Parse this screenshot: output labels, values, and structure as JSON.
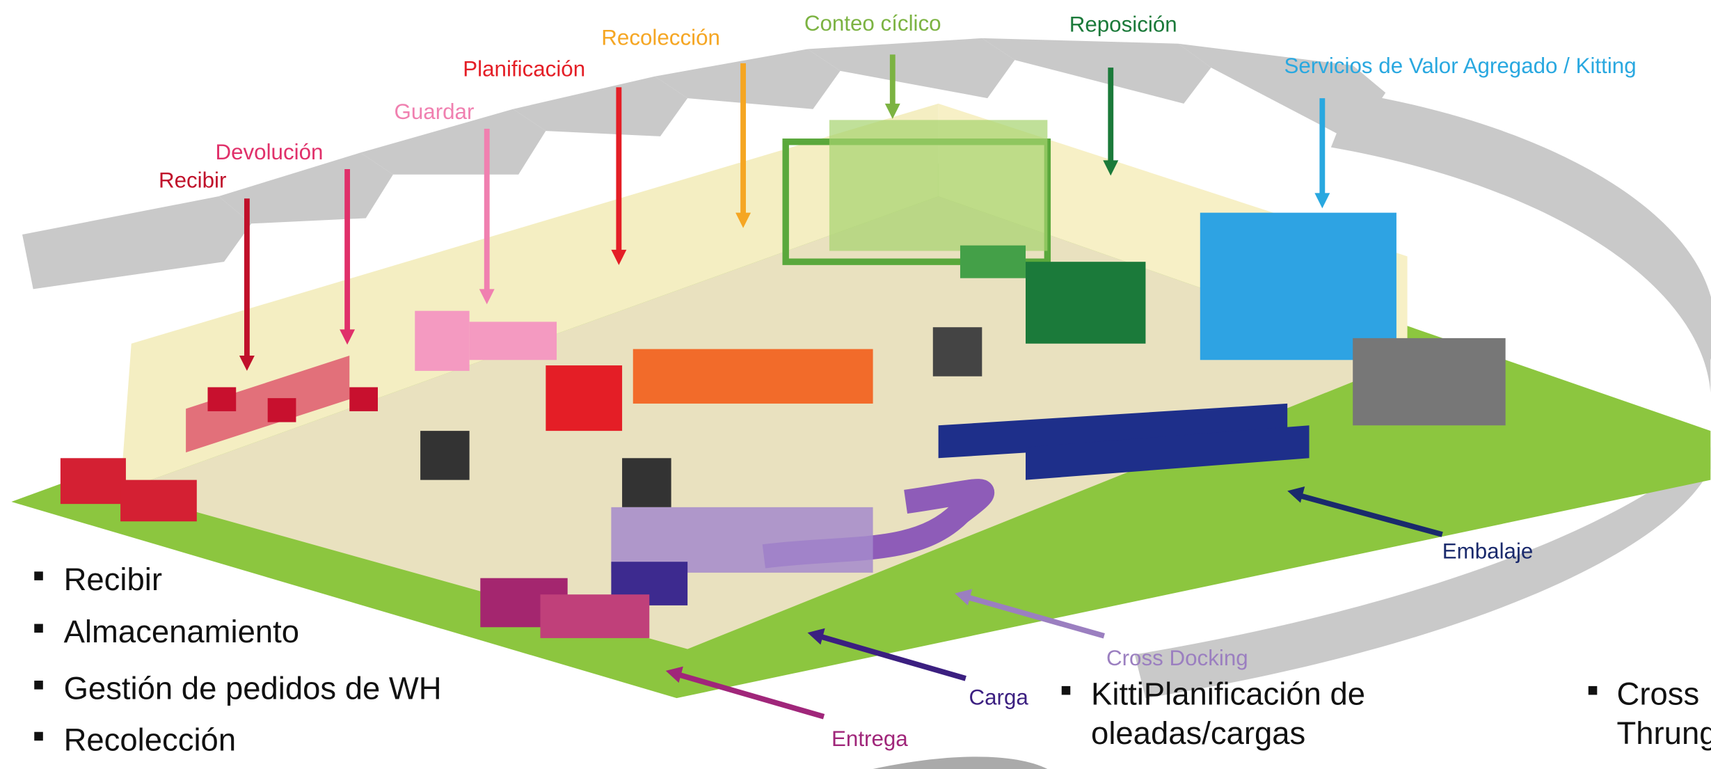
{
  "labels": [
    "Recibir",
    "Devolución",
    "Guardar",
    "Planificación",
    "Recolección",
    "Conteo cíclico",
    "Reposición",
    "Servicios de Valor Agregado / Kitting",
    "Embalaje",
    "Cross Docking",
    "Carga",
    "Entrega"
  ],
  "left_list": [
    "Recibir",
    "Almacenamiento",
    "Gestión de pedidos de WH",
    "Recolección"
  ],
  "middle_list": [
    "KittiPlanificación de",
    "oleadas/cargas"
  ],
  "right_list": [
    "Cross",
    "Thrung"
  ]
}
